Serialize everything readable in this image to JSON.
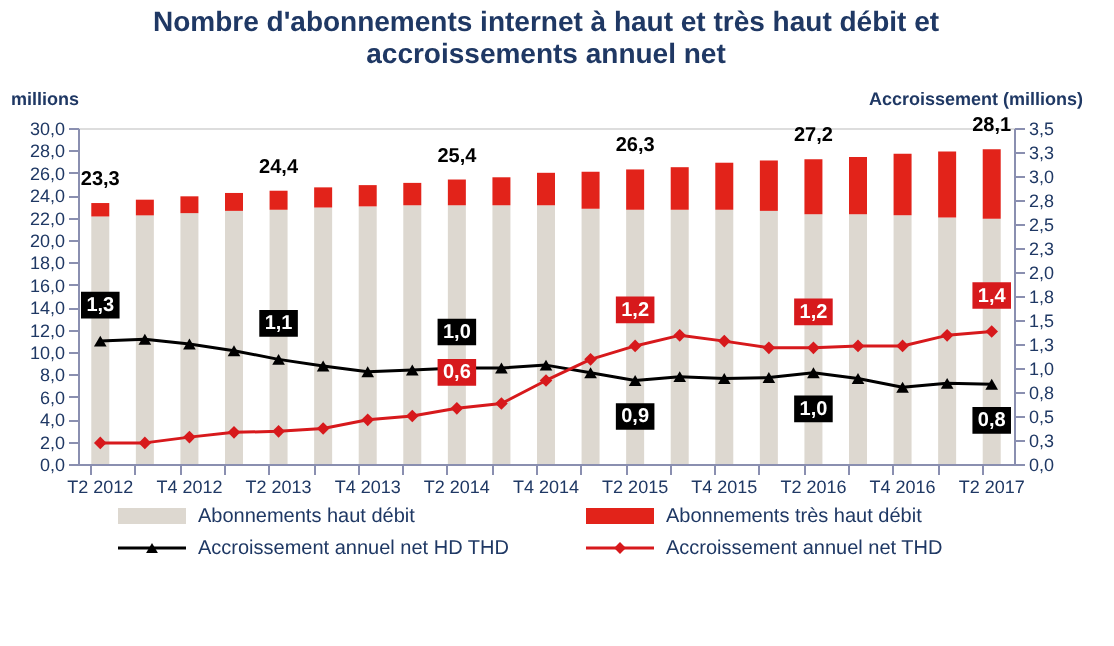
{
  "chart_data": {
    "type": "bar",
    "title": "Nombre d'abonnements internet à haut et très haut débit et accroissements annuel net",
    "ylabel": "millions",
    "y2label": "Accroissement (millions)",
    "categories": [
      "T2 2012",
      null,
      "T4 2012",
      null,
      "T2 2013",
      null,
      "T4 2013",
      null,
      "T2 2014",
      null,
      "T4 2014",
      null,
      "T2 2015",
      null,
      "T4 2015",
      null,
      "T2 2016",
      null,
      "T4 2016",
      null,
      "T2 2017"
    ],
    "stacked": true,
    "series": [
      {
        "name": "Abonnements haut débit",
        "color": "#ddd8d0",
        "values": [
          22.1,
          22.2,
          22.4,
          22.6,
          22.7,
          22.9,
          23.0,
          23.1,
          23.1,
          23.1,
          23.1,
          22.8,
          22.7,
          22.7,
          22.7,
          22.6,
          22.3,
          22.3,
          22.2,
          22.0,
          21.9
        ]
      },
      {
        "name": "Abonnements très haut débit",
        "color": "#e2231a",
        "values": [
          1.2,
          1.4,
          1.5,
          1.6,
          1.7,
          1.8,
          1.9,
          2.0,
          2.3,
          2.5,
          2.9,
          3.3,
          3.6,
          3.8,
          4.2,
          4.5,
          4.9,
          5.1,
          5.5,
          5.9,
          6.2
        ]
      },
      {
        "name": "Accroissement annuel net HD THD",
        "type": "line",
        "axis": "y2",
        "color": "#000000",
        "marker": "triangle",
        "values": [
          1.28,
          1.3,
          1.25,
          1.18,
          1.09,
          1.02,
          0.96,
          0.98,
          1.0,
          1.0,
          1.03,
          0.95,
          0.87,
          0.91,
          0.89,
          0.9,
          0.95,
          0.89,
          0.8,
          0.84,
          0.83
        ],
        "value_labels": [
          "1,3",
          null,
          null,
          null,
          "1,1",
          null,
          null,
          null,
          "1,0",
          null,
          null,
          null,
          "0,9",
          null,
          null,
          null,
          "1,0",
          null,
          null,
          null,
          "0,8"
        ]
      },
      {
        "name": "Accroissement annuel net THD",
        "type": "line",
        "axis": "y2",
        "color": "#d7191c",
        "marker": "diamond",
        "values": [
          0.22,
          0.22,
          0.28,
          0.33,
          0.34,
          0.37,
          0.46,
          0.5,
          0.58,
          0.63,
          0.87,
          1.09,
          1.23,
          1.34,
          1.28,
          1.21,
          1.21,
          1.23,
          1.23,
          1.34,
          1.38
        ],
        "value_labels": [
          null,
          null,
          null,
          null,
          null,
          null,
          null,
          null,
          "0,6",
          null,
          null,
          null,
          "1,2",
          null,
          null,
          null,
          "1,2",
          null,
          null,
          null,
          "1,4"
        ]
      }
    ],
    "totals": [
      "23,3",
      null,
      null,
      null,
      "24,4",
      null,
      null,
      null,
      "25,4",
      null,
      null,
      null,
      "26,3",
      null,
      null,
      null,
      "27,2",
      null,
      null,
      null,
      "28,1"
    ],
    "ylim": [
      0,
      30
    ],
    "yticks": [
      {
        "value": 0,
        "label": "0,0"
      },
      {
        "value": 2,
        "label": "2,0"
      },
      {
        "value": 4,
        "label": "4,0"
      },
      {
        "value": 6,
        "label": "6,0"
      },
      {
        "value": 8,
        "label": "8,0"
      },
      {
        "value": 10,
        "label": "10,0"
      },
      {
        "value": 12,
        "label": "12,0"
      },
      {
        "value": 14,
        "label": "14,0"
      },
      {
        "value": 16,
        "label": "16,0"
      },
      {
        "value": 18,
        "label": "18,0"
      },
      {
        "value": 20,
        "label": "20,0"
      },
      {
        "value": 22,
        "label": "22,0"
      },
      {
        "value": 24,
        "label": "24,0"
      },
      {
        "value": 26,
        "label": "26,0"
      },
      {
        "value": 28,
        "label": "28,0"
      },
      {
        "value": 30,
        "label": "30,0"
      }
    ],
    "y2lim": [
      0,
      3.5
    ],
    "y2ticks": [
      {
        "value": 0,
        "label": "0,0"
      },
      {
        "value": 0.25,
        "label": "0,3"
      },
      {
        "value": 0.5,
        "label": "0,5"
      },
      {
        "value": 0.75,
        "label": "0,8"
      },
      {
        "value": 1,
        "label": "1,0"
      },
      {
        "value": 1.25,
        "label": "1,3"
      },
      {
        "value": 1.5,
        "label": "1,5"
      },
      {
        "value": 1.75,
        "label": "1,8"
      },
      {
        "value": 2,
        "label": "2,0"
      },
      {
        "value": 2.25,
        "label": "2,3"
      },
      {
        "value": 2.5,
        "label": "2,5"
      },
      {
        "value": 2.75,
        "label": "2,8"
      },
      {
        "value": 3,
        "label": "3,0"
      },
      {
        "value": 3.25,
        "label": "3,3"
      },
      {
        "value": 3.5,
        "label": "3,5"
      }
    ],
    "legend": "bottom"
  }
}
